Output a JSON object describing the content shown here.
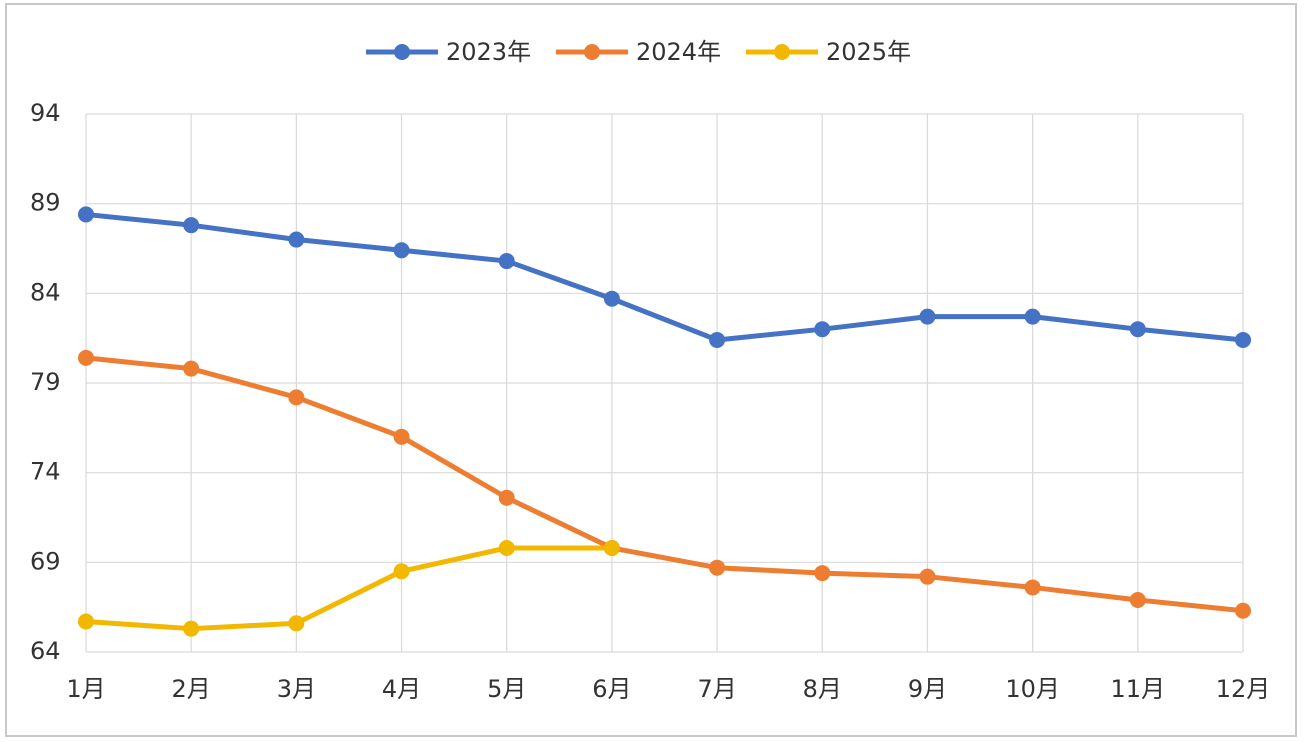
{
  "chart_data": {
    "type": "line",
    "categories": [
      "1月",
      "2月",
      "3月",
      "4月",
      "5月",
      "6月",
      "7月",
      "8月",
      "9月",
      "10月",
      "11月",
      "12月"
    ],
    "series": [
      {
        "name": "2023年",
        "color": "#4472c4",
        "values": [
          88.4,
          87.8,
          87.0,
          86.4,
          85.8,
          83.7,
          81.4,
          82.0,
          82.7,
          82.7,
          82.0,
          81.4
        ]
      },
      {
        "name": "2024年",
        "color": "#ed7d31",
        "values": [
          80.4,
          79.8,
          78.2,
          76.0,
          72.6,
          69.8,
          68.7,
          68.4,
          68.2,
          67.6,
          66.9,
          66.3
        ]
      },
      {
        "name": "2025年",
        "color": "#f2b800",
        "values": [
          65.7,
          65.3,
          65.6,
          68.5,
          69.8,
          69.8,
          null,
          null,
          null,
          null,
          null,
          null
        ]
      }
    ],
    "ylim": [
      64,
      94
    ],
    "yticks": [
      64,
      69,
      74,
      79,
      84,
      89,
      94
    ],
    "grid": true,
    "legend": "top"
  }
}
